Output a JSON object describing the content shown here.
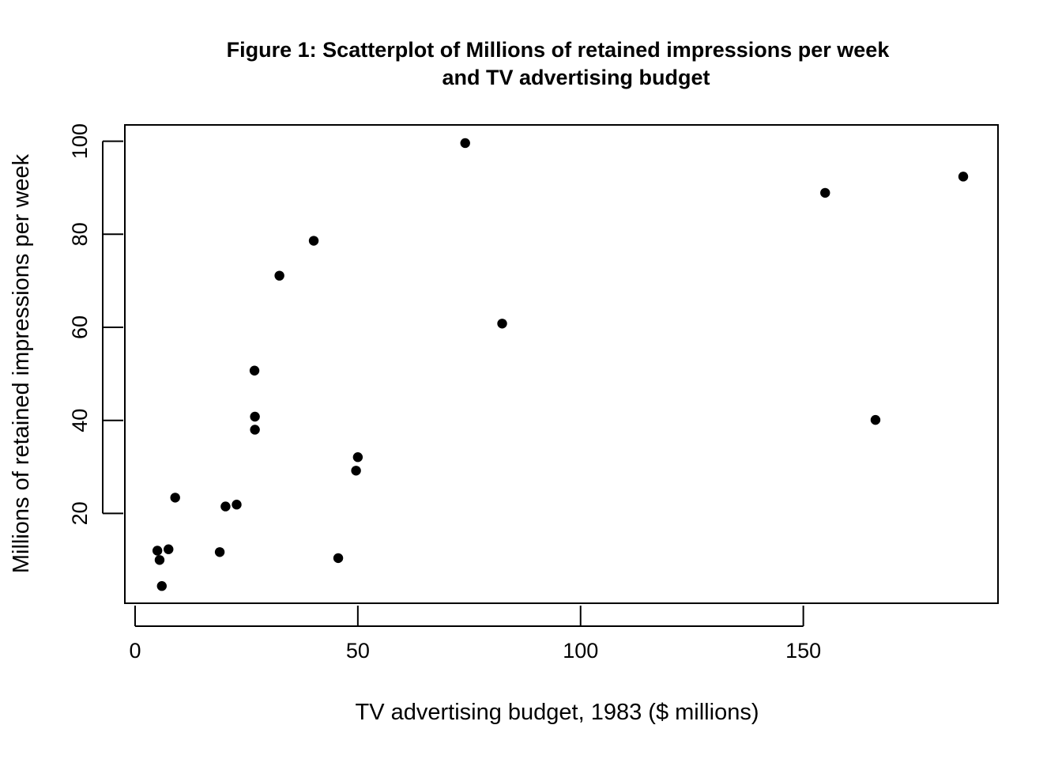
{
  "chart_data": {
    "type": "scatter",
    "title_lines": [
      "Figure 1: Scatterplot of Millions of retained impressions per week",
      "and TV advertising budget"
    ],
    "xlabel": "TV advertising budget, 1983 ($ millions)",
    "ylabel": "Millions of retained impressions per week",
    "xlim": [
      -2.3,
      193.7
    ],
    "ylim": [
      0.7,
      103.5
    ],
    "x_ticks": [
      0,
      50,
      100,
      150
    ],
    "x_tick_labels": [
      "0",
      "50",
      "100",
      "150"
    ],
    "y_ticks": [
      20,
      40,
      60,
      80,
      100
    ],
    "y_tick_labels": [
      "20",
      "40",
      "60",
      "80",
      "100"
    ],
    "grid": false,
    "legend": "none",
    "marker_color": "#000000",
    "points": [
      {
        "x": 5.0,
        "y": 12.0
      },
      {
        "x": 5.5,
        "y": 10.0
      },
      {
        "x": 6.0,
        "y": 4.4
      },
      {
        "x": 7.5,
        "y": 12.3
      },
      {
        "x": 9.0,
        "y": 23.4
      },
      {
        "x": 19.0,
        "y": 11.7
      },
      {
        "x": 20.3,
        "y": 21.5
      },
      {
        "x": 22.8,
        "y": 21.9
      },
      {
        "x": 26.8,
        "y": 50.7
      },
      {
        "x": 26.9,
        "y": 40.8
      },
      {
        "x": 26.9,
        "y": 38.0
      },
      {
        "x": 32.4,
        "y": 71.1
      },
      {
        "x": 40.1,
        "y": 78.6
      },
      {
        "x": 45.6,
        "y": 10.4
      },
      {
        "x": 49.6,
        "y": 29.2
      },
      {
        "x": 50.0,
        "y": 32.1
      },
      {
        "x": 74.1,
        "y": 99.6
      },
      {
        "x": 82.4,
        "y": 60.8
      },
      {
        "x": 154.9,
        "y": 88.9
      },
      {
        "x": 166.2,
        "y": 40.1
      },
      {
        "x": 185.9,
        "y": 92.4
      }
    ]
  }
}
